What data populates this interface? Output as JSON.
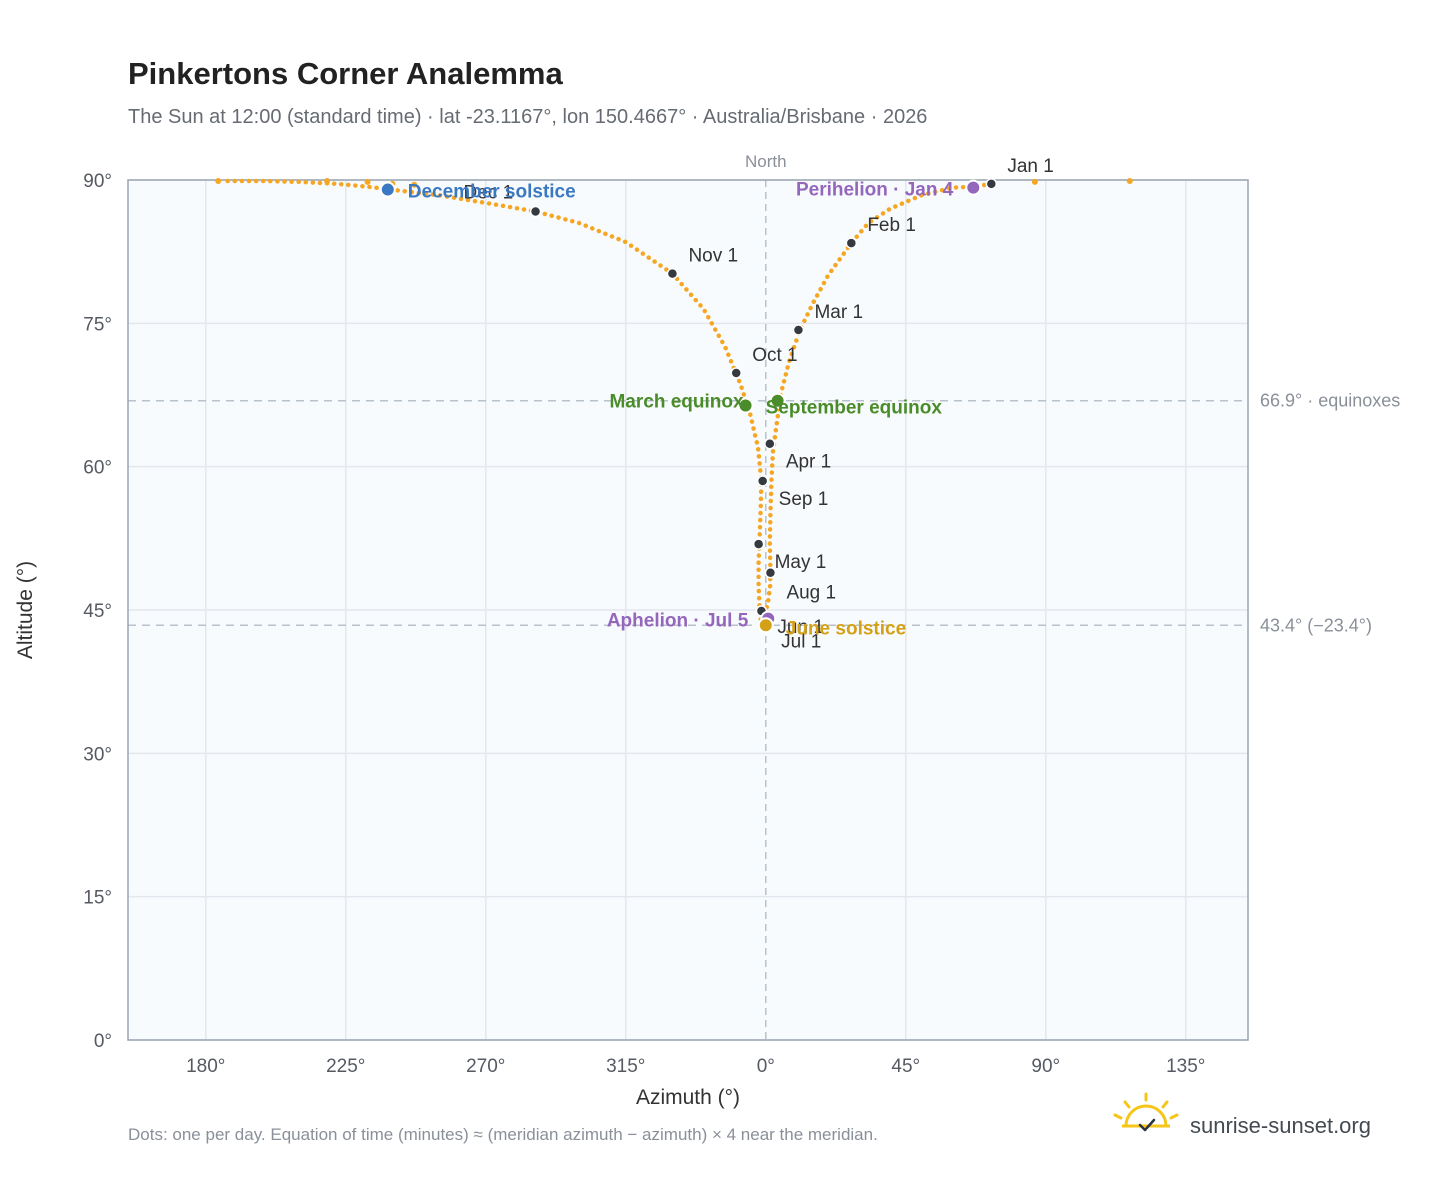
{
  "chart_data": {
    "type": "scatter",
    "title": "Pinkertons Corner Analemma",
    "subtitle": "The Sun at 12:00 (standard time) · lat -23.1167°, lon 150.4667° · Australia/Brisbane · 2026",
    "xlabel": "Azimuth (°)",
    "ylabel": "Altitude (°)",
    "x_center": 0,
    "xlim_offset": [
      -205,
      155
    ],
    "ylim": [
      0,
      90
    ],
    "x_ticks": [
      {
        "label": "180°",
        "offset": -180
      },
      {
        "label": "225°",
        "offset": -135
      },
      {
        "label": "270°",
        "offset": -90
      },
      {
        "label": "315°",
        "offset": -45
      },
      {
        "label": "0°",
        "offset": 0
      },
      {
        "label": "45°",
        "offset": 45
      },
      {
        "label": "90°",
        "offset": 90
      },
      {
        "label": "135°",
        "offset": 135
      }
    ],
    "y_ticks": [
      {
        "label": "0°",
        "value": 0
      },
      {
        "label": "15°",
        "value": 15
      },
      {
        "label": "30°",
        "value": 30
      },
      {
        "label": "45°",
        "value": 45
      },
      {
        "label": "60°",
        "value": 60
      },
      {
        "label": "75°",
        "value": 75
      },
      {
        "label": "90°",
        "value": 90
      }
    ],
    "north_label": "North",
    "reference_lines": [
      {
        "value": 66.9,
        "label": "66.9° · equinoxes"
      },
      {
        "value": 43.4,
        "label": "43.4° (−23.4°)"
      }
    ],
    "grid": true,
    "colors": {
      "path": "#f5a623",
      "month": "#343a40",
      "equinox": "#4a8c2a",
      "solstice_dec": "#3a78c2",
      "solstice_jun": "#d4a017",
      "perihelion": "#9467bd",
      "frame": "#9aa4b1",
      "plot_bg": "#f8fbfd",
      "grid": "#e3e8ee"
    },
    "daily_path": [
      {
        "az": 72.5,
        "alt": 89.6
      },
      {
        "az": 67,
        "alt": 89.3
      },
      {
        "az": 60,
        "alt": 89.2
      },
      {
        "az": 50,
        "alt": 88.4
      },
      {
        "az": 40,
        "alt": 87.0
      },
      {
        "az": 33,
        "alt": 85.5
      },
      {
        "az": 27.5,
        "alt": 83.4
      },
      {
        "az": 20,
        "alt": 80.0
      },
      {
        "az": 15,
        "alt": 77.0
      },
      {
        "az": 11,
        "alt": 74.3
      },
      {
        "az": 7.5,
        "alt": 71.0
      },
      {
        "az": 5,
        "alt": 67.8
      },
      {
        "az": 3.5,
        "alt": 64.5
      },
      {
        "az": 2.3,
        "alt": 61.5
      },
      {
        "az": 1.8,
        "alt": 58.5
      },
      {
        "az": 1.5,
        "alt": 55.0
      },
      {
        "az": 1.3,
        "alt": 52.0
      },
      {
        "az": 1.5,
        "alt": 49.5
      },
      {
        "az": 1.4,
        "alt": 47.5
      },
      {
        "az": 0.8,
        "alt": 46.0
      },
      {
        "az": 0.1,
        "alt": 45.0
      },
      {
        "az": -0.6,
        "alt": 44.0
      },
      {
        "az": -1.0,
        "alt": 43.6
      },
      {
        "az": -1.6,
        "alt": 43.9
      },
      {
        "az": -2.0,
        "alt": 45.2
      },
      {
        "az": -2.3,
        "alt": 47.5
      },
      {
        "az": -2.3,
        "alt": 50.0
      },
      {
        "az": -2.0,
        "alt": 52.5
      },
      {
        "az": -1.6,
        "alt": 56.0
      },
      {
        "az": -1.4,
        "alt": 58.5
      },
      {
        "az": -2.5,
        "alt": 62.0
      },
      {
        "az": -5.0,
        "alt": 65.5
      },
      {
        "az": -8.0,
        "alt": 68.5
      },
      {
        "az": -13.0,
        "alt": 72.5
      },
      {
        "az": -20.0,
        "alt": 76.5
      },
      {
        "az": -30.0,
        "alt": 80.2
      },
      {
        "az": -45.0,
        "alt": 83.5
      },
      {
        "az": -60.0,
        "alt": 85.5
      },
      {
        "az": -74.0,
        "alt": 86.7
      },
      {
        "az": -90.0,
        "alt": 87.6
      },
      {
        "az": -105.0,
        "alt": 88.4
      },
      {
        "az": -118.0,
        "alt": 88.9
      },
      {
        "az": -128.0,
        "alt": 89.3
      },
      {
        "az": -138.0,
        "alt": 89.6
      },
      {
        "az": -150.0,
        "alt": 89.8
      },
      {
        "az": -161.0,
        "alt": 89.9
      },
      {
        "az": -175.0,
        "alt": 89.9
      }
    ],
    "sparse_points": [
      {
        "az": -176.0,
        "alt": 89.9
      },
      {
        "az": -141.0,
        "alt": 89.9
      },
      {
        "az": -128.0,
        "alt": 89.8
      },
      {
        "az": -120.0,
        "alt": 89.6
      },
      {
        "az": -113.0,
        "alt": 89.5
      },
      {
        "az": 86.5,
        "alt": 89.8
      },
      {
        "az": 117.0,
        "alt": 89.9
      }
    ],
    "month_markers": [
      {
        "label": "Jan 1",
        "az": 72.5,
        "alt": 89.6,
        "dx": 16,
        "dy": -12
      },
      {
        "label": "Feb 1",
        "az": 27.5,
        "alt": 83.4,
        "dx": 16,
        "dy": -12
      },
      {
        "label": "Mar 1",
        "az": 10.5,
        "alt": 74.3,
        "dx": 16,
        "dy": -12
      },
      {
        "label": "Apr 1",
        "az": 1.3,
        "alt": 62.4,
        "dx": 16,
        "dy": 24
      },
      {
        "label": "May 1",
        "az": -2.3,
        "alt": 51.9,
        "dx": 16,
        "dy": 24
      },
      {
        "label": "Jun 1",
        "az": -1.4,
        "alt": 44.9,
        "dx": 16,
        "dy": 22
      },
      {
        "label": "Jul 1",
        "az": -0.2,
        "alt": 43.4,
        "dx": 16,
        "dy": 22
      },
      {
        "label": "Aug 1",
        "az": 1.5,
        "alt": 48.9,
        "dx": 16,
        "dy": 26
      },
      {
        "label": "Sep 1",
        "az": -1.0,
        "alt": 58.5,
        "dx": 16,
        "dy": 24
      },
      {
        "label": "Oct 1",
        "az": -9.5,
        "alt": 69.8,
        "dx": 16,
        "dy": -12
      },
      {
        "label": "Nov 1",
        "az": -30.0,
        "alt": 80.2,
        "dx": 16,
        "dy": -12
      },
      {
        "label": "Dec 1",
        "az": -74.0,
        "alt": 86.7,
        "dx": -72,
        "dy": -13
      }
    ],
    "events": [
      {
        "label": "December solstice",
        "az": -121.5,
        "alt": 89.0,
        "color": "#3a78c2",
        "dx": 20,
        "dy": 8,
        "anchor": "start"
      },
      {
        "label": "Perihelion · Jan 4",
        "az": 66.7,
        "alt": 89.2,
        "color": "#9467bd",
        "dx": -20,
        "dy": 8,
        "anchor": "end"
      },
      {
        "label": "March equinox",
        "az": -6.5,
        "alt": 66.4,
        "color": "#4a8c2a",
        "dx": -2,
        "dy": 2,
        "anchor": "end"
      },
      {
        "label": "September equinox",
        "az": 3.8,
        "alt": 66.9,
        "color": "#4a8c2a",
        "dx": -12,
        "dy": 13,
        "anchor": "start"
      },
      {
        "label": "Aphelion · Jul 5",
        "az": 0.8,
        "alt": 44.1,
        "color": "#9467bd",
        "dx": -20,
        "dy": 8,
        "anchor": "end"
      },
      {
        "label": "June solstice",
        "az": 0.0,
        "alt": 43.4,
        "color": "#d4a017",
        "dx": 20,
        "dy": 9,
        "anchor": "start"
      }
    ]
  },
  "footnote": "Dots: one per day. Equation of time (minutes) ≈ (meridian azimuth − azimuth) × 4 near the meridian.",
  "brand": {
    "name": "sunrise-sunset.org",
    "icon": "sun-check-icon"
  }
}
